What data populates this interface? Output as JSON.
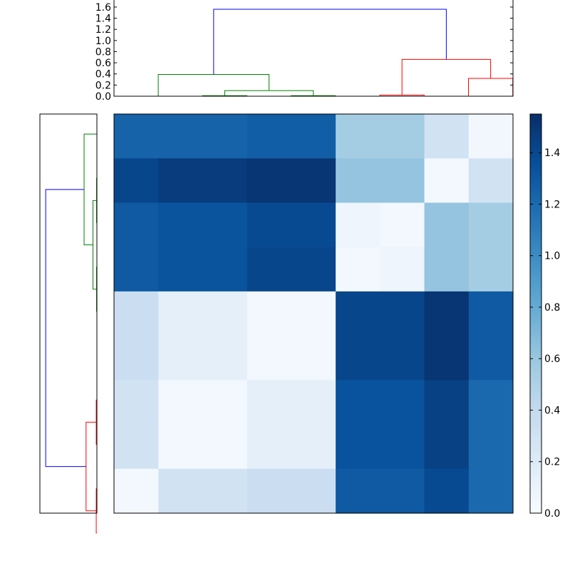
{
  "chart_data": [
    {
      "type": "dendrogram",
      "orientation": "top",
      "ylim": [
        0,
        1.65
      ],
      "yticks": [
        "0.0",
        "0.2",
        "0.4",
        "0.6",
        "0.8",
        "1.0",
        "1.2",
        "1.4",
        "1.6"
      ],
      "leaf_count": 9,
      "links": [
        {
          "left": 3,
          "right": 4,
          "height": 0.01,
          "color": "#008000"
        },
        {
          "left": 5,
          "right": 6,
          "height": 0.01,
          "color": "#008000"
        },
        {
          "left": 3.5,
          "right": 5.5,
          "height": 0.1,
          "color": "#008000"
        },
        {
          "left": 2,
          "right": 4.5,
          "height": 0.39,
          "color": "#008000"
        },
        {
          "left": 7,
          "right": 8,
          "height": 0.02,
          "color": "#ff0000"
        },
        {
          "left": 9,
          "right": 10,
          "height": 0.32,
          "color": "#ff0000"
        },
        {
          "left": 7.5,
          "right": 9.5,
          "height": 0.66,
          "color": "#ff0000"
        },
        {
          "left": 3.25,
          "right": 8.5,
          "height": 1.56,
          "color": "#0000ff"
        }
      ]
    },
    {
      "type": "dendrogram",
      "orientation": "left",
      "leaf_count": 9,
      "links": [
        {
          "left": 8,
          "right": 9,
          "height": 0.02,
          "color": "#ff0000"
        },
        {
          "left": 10,
          "right": 11,
          "height": 0.02,
          "color": "#ff0000"
        },
        {
          "left": 8.5,
          "right": 10.5,
          "height": 0.33,
          "color": "#ff0000"
        },
        {
          "left": 3,
          "right": 4,
          "height": 0.01,
          "color": "#008000"
        },
        {
          "left": 5,
          "right": 6,
          "height": 0.01,
          "color": "#008000"
        },
        {
          "left": 3.5,
          "right": 5.5,
          "height": 0.12,
          "color": "#008000"
        },
        {
          "left": 2,
          "right": 4.5,
          "height": 0.39,
          "color": "#008000"
        },
        {
          "left": 3.25,
          "right": 9.5,
          "height": 1.56,
          "color": "#0000ff"
        }
      ]
    },
    {
      "type": "heatmap",
      "colormap": "Blues",
      "vmin": 0,
      "vmax": 1.55,
      "colorbar_ticks": [
        "0.0",
        "0.2",
        "0.4",
        "0.6",
        "0.8",
        "1.0",
        "1.2",
        "1.4"
      ],
      "values": [
        [
          1.25,
          1.25,
          1.25,
          1.28,
          1.28,
          0.55,
          0.55,
          0.3,
          0.05
        ],
        [
          1.42,
          1.48,
          1.48,
          1.52,
          1.52,
          0.62,
          0.62,
          0.04,
          0.3
        ],
        [
          1.3,
          1.34,
          1.34,
          1.4,
          1.4,
          0.07,
          0.04,
          0.62,
          0.55
        ],
        [
          1.3,
          1.34,
          1.34,
          1.42,
          1.42,
          0.04,
          0.07,
          0.62,
          0.55
        ],
        [
          0.35,
          0.14,
          0.14,
          0.04,
          0.04,
          1.42,
          1.42,
          1.52,
          1.3
        ],
        [
          0.35,
          0.14,
          0.14,
          0.04,
          0.04,
          1.42,
          1.42,
          1.52,
          1.3
        ],
        [
          0.3,
          0.04,
          0.04,
          0.14,
          0.14,
          1.35,
          1.35,
          1.45,
          1.22
        ],
        [
          0.3,
          0.04,
          0.04,
          0.14,
          0.14,
          1.35,
          1.35,
          1.45,
          1.22
        ],
        [
          0.04,
          0.3,
          0.3,
          0.35,
          0.35,
          1.3,
          1.3,
          1.4,
          1.22
        ]
      ]
    }
  ]
}
